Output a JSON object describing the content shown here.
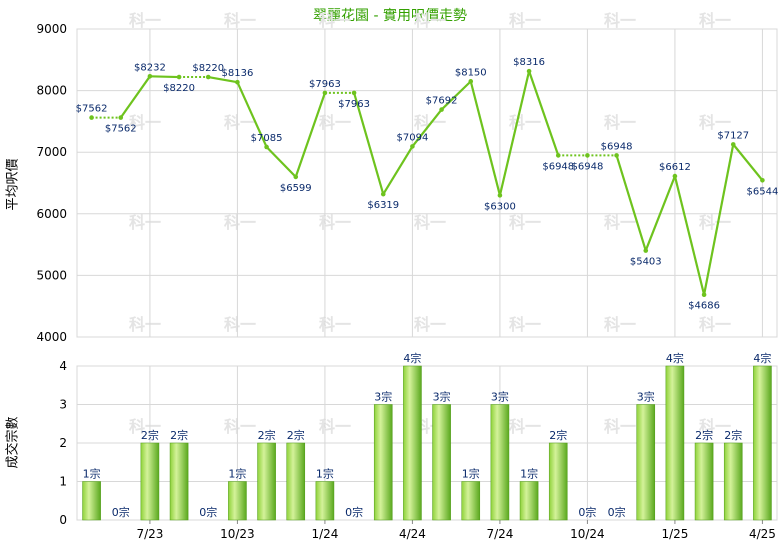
{
  "title": "翠麗花園 - 實用呎價走勢",
  "watermark": "科一",
  "colors": {
    "line": "#6ec31e",
    "bar_light": "#c9ec85",
    "bar_dark": "#5aa81e",
    "grid": "#d8d8d8",
    "title": "#33a000"
  },
  "chart_data": [
    {
      "type": "line",
      "ylabel": "平均呎價",
      "ylim": [
        4000,
        9000
      ],
      "yticks": [
        "4000",
        "5000",
        "6000",
        "7000",
        "8000",
        "9000"
      ],
      "grid": true,
      "values": [
        7562,
        7562,
        8232,
        8220,
        8220,
        8136,
        7085,
        6599,
        7963,
        7963,
        6319,
        7094,
        7692,
        8150,
        6300,
        8316,
        6948,
        6948,
        6948,
        5403,
        6612,
        4686,
        7127,
        6544
      ],
      "labels": [
        "$7562",
        "$7562",
        "$8232",
        "$8220",
        "$8220",
        "$8136",
        "$7085",
        "$6599",
        "$7963",
        "$7963",
        "$6319",
        "$7094",
        "$7692",
        "$8150",
        "$6300",
        "$8316",
        "$6948",
        "$6948",
        "$6948",
        "$5403",
        "$6612",
        "$4686",
        "$7127",
        "$6544"
      ],
      "dashed_segments": [
        0,
        3,
        8,
        16,
        17
      ]
    },
    {
      "type": "bar",
      "ylabel": "成交宗數",
      "ylim": [
        0,
        4
      ],
      "yticks": [
        "0",
        "1",
        "2",
        "3",
        "4"
      ],
      "grid": true,
      "values": [
        1,
        0,
        2,
        2,
        0,
        1,
        2,
        2,
        1,
        0,
        3,
        4,
        3,
        1,
        3,
        1,
        2,
        0,
        0,
        3,
        4,
        2,
        2,
        4
      ],
      "labels": [
        "1宗",
        "0宗",
        "2宗",
        "2宗",
        "0宗",
        "1宗",
        "2宗",
        "2宗",
        "1宗",
        "0宗",
        "3宗",
        "4宗",
        "3宗",
        "1宗",
        "3宗",
        "1宗",
        "2宗",
        "0宗",
        "0宗",
        "3宗",
        "4宗",
        "2宗",
        "2宗",
        "4宗"
      ],
      "xticks": [
        {
          "label": "7/23",
          "index": 2
        },
        {
          "label": "10/23",
          "index": 5
        },
        {
          "label": "1/24",
          "index": 8
        },
        {
          "label": "4/24",
          "index": 11
        },
        {
          "label": "7/24",
          "index": 14
        },
        {
          "label": "10/24",
          "index": 17
        },
        {
          "label": "1/25",
          "index": 20
        },
        {
          "label": "4/25",
          "index": 23
        }
      ]
    }
  ]
}
